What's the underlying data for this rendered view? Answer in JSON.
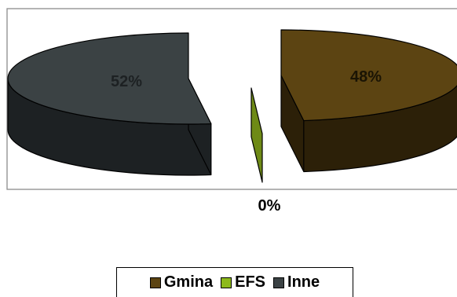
{
  "chart_data": {
    "type": "pie",
    "title": "",
    "categories": [
      "Gmina",
      "EFS",
      "Inne"
    ],
    "values": [
      48,
      0,
      52
    ],
    "unit": "%",
    "data_labels": [
      "48%",
      "0%",
      "52%"
    ],
    "colors": [
      "#5c4412",
      "#6e8a16",
      "#3b4244"
    ],
    "side_colors": [
      "#2c2008",
      "#3f5209",
      "#1d2123"
    ],
    "legend_position": "bottom",
    "exploded": true,
    "three_d": true
  }
}
